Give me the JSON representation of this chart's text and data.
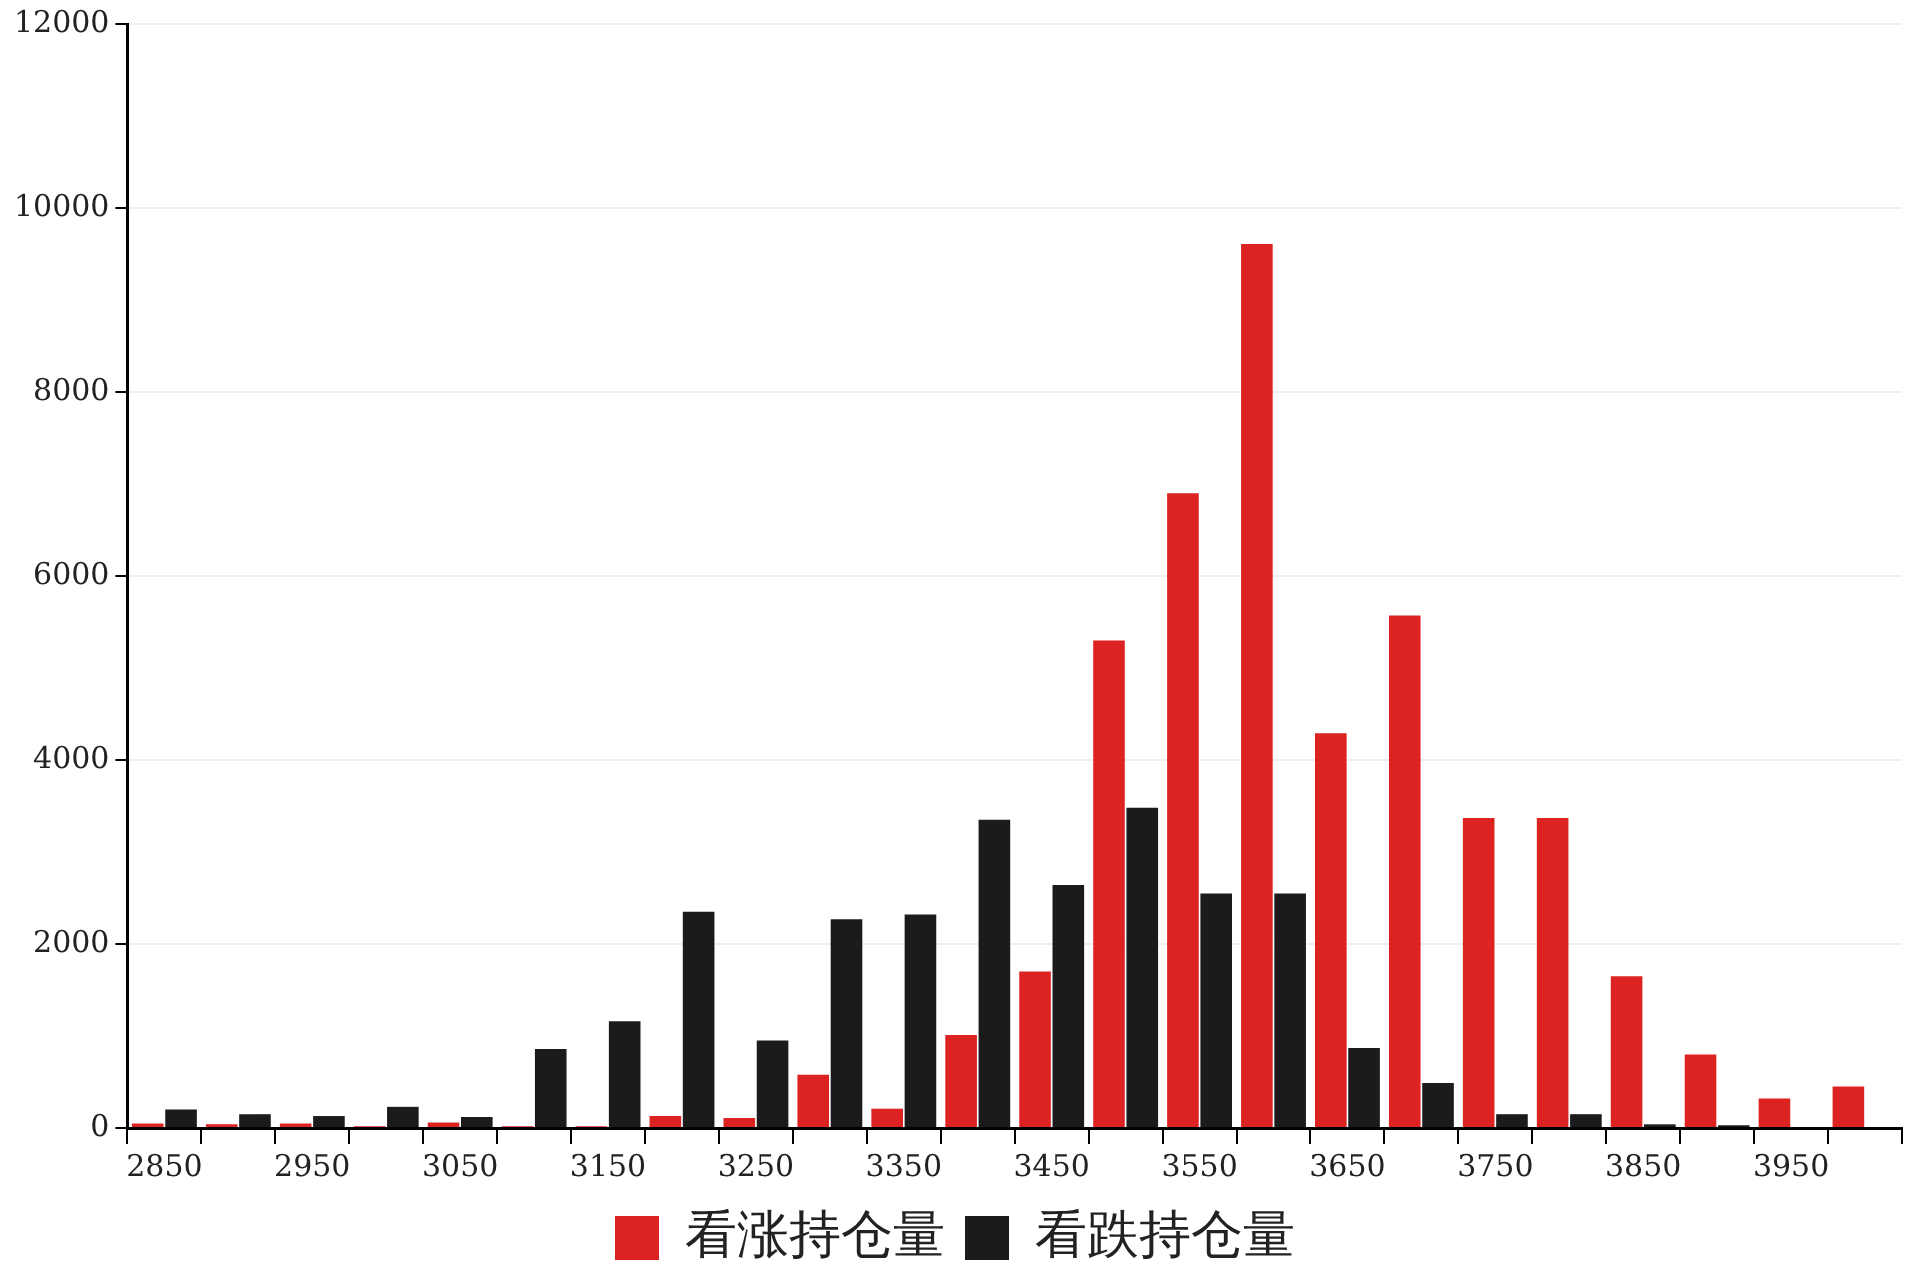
{
  "chart_data": {
    "type": "bar",
    "categories": [
      "2850",
      null,
      "2950",
      null,
      "3050",
      null,
      "3150",
      null,
      "3250",
      null,
      "3350",
      null,
      "3450",
      null,
      "3550",
      null,
      "3650",
      null,
      "3750",
      null,
      "3850",
      null,
      "3950",
      null
    ],
    "series": [
      {
        "name": "看涨持仓量",
        "color": "#dd2222",
        "values": [
          50,
          40,
          50,
          20,
          60,
          20,
          20,
          130,
          110,
          580,
          210,
          1010,
          1700,
          5300,
          6900,
          9610,
          4290,
          5570,
          3370,
          3370,
          1650,
          800,
          320,
          450
        ]
      },
      {
        "name": "看跌持仓量",
        "color": "#1c1a1d",
        "values": [
          200,
          150,
          130,
          230,
          120,
          860,
          1160,
          2350,
          950,
          2270,
          2320,
          3350,
          2640,
          3480,
          2550,
          2550,
          870,
          490,
          150,
          150,
          40,
          30,
          10,
          0
        ]
      }
    ],
    "ylim": [
      0,
      12000
    ],
    "yticks": [
      0,
      2000,
      4000,
      6000,
      8000,
      10000,
      12000
    ],
    "grid": "y",
    "legend": "bottom"
  }
}
